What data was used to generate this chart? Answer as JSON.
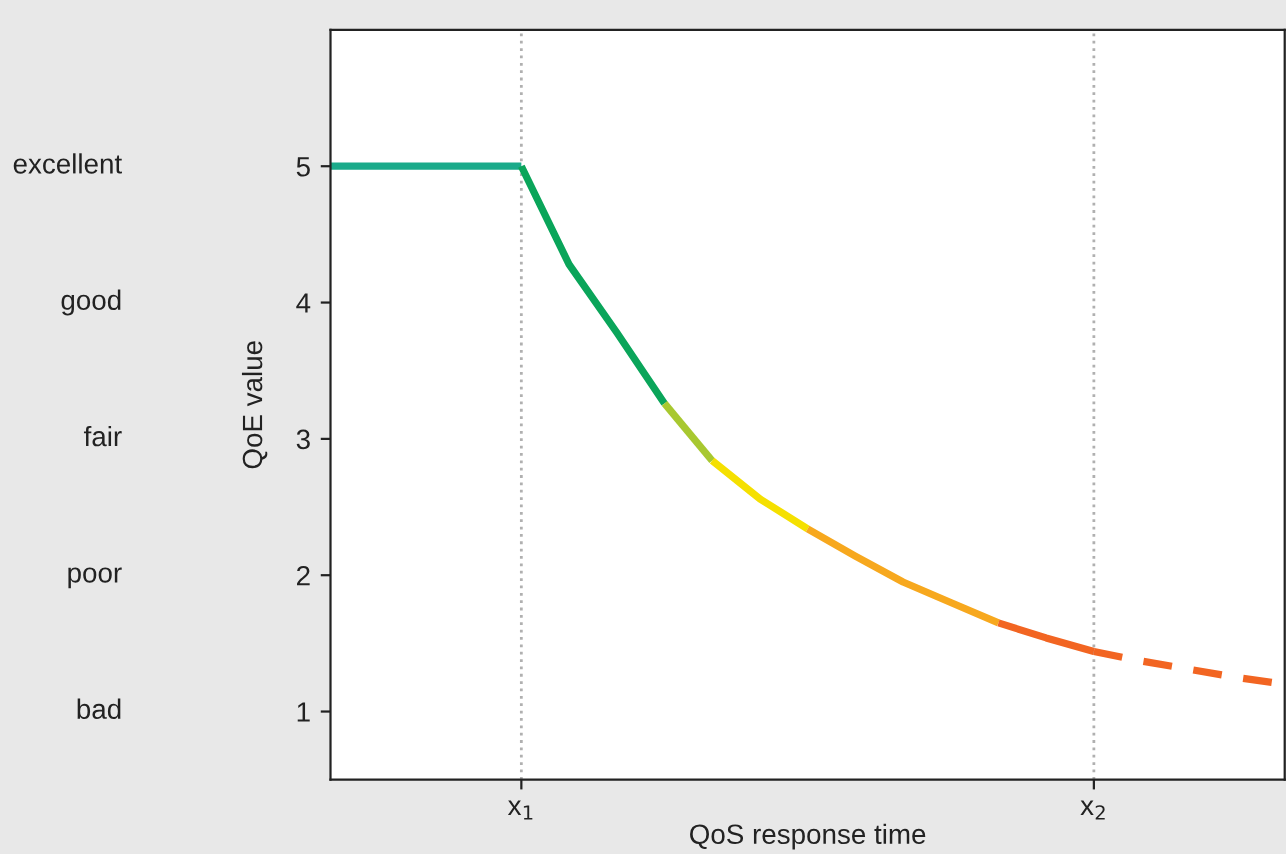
{
  "chart_data": {
    "type": "line",
    "xlabel": "QoS response time",
    "ylabel": "QoE value",
    "categories": [
      null,
      null,
      null,
      null,
      "x$_{1}$",
      null,
      null,
      null,
      null,
      null,
      null,
      null,
      null,
      null,
      null,
      null,
      "x$_{2}$",
      null,
      null,
      null,
      null
    ],
    "ylim": [
      0.5,
      6
    ],
    "yticks": [
      1,
      2,
      3,
      4,
      5
    ],
    "annotations": [
      "excellent",
      "good",
      "fair",
      "poor",
      "bad"
    ],
    "grid": "x",
    "legend": false,
    "marker": "none",
    "series": [
      {
        "color": "#1aaa8a",
        "line_style": "solid",
        "values": [
          5,
          5,
          5,
          5,
          5,
          null,
          null,
          null,
          null,
          null,
          null,
          null,
          null,
          null,
          null,
          null,
          null,
          null,
          null,
          null,
          null
        ]
      },
      {
        "color": "#0aa55a",
        "line_style": "solid",
        "values": [
          null,
          null,
          null,
          null,
          5,
          4.28,
          3.78,
          3.26,
          null,
          null,
          null,
          null,
          null,
          null,
          null,
          null,
          null,
          null,
          null,
          null,
          null
        ]
      },
      {
        "color": "#a8c830",
        "line_style": "solid",
        "values": [
          null,
          null,
          null,
          null,
          null,
          null,
          null,
          3.26,
          2.84,
          null,
          null,
          null,
          null,
          null,
          null,
          null,
          null,
          null,
          null,
          null,
          null
        ]
      },
      {
        "color": "#f5e000",
        "line_style": "solid",
        "values": [
          null,
          null,
          null,
          null,
          null,
          null,
          null,
          null,
          2.84,
          2.56,
          2.34,
          null,
          null,
          null,
          null,
          null,
          null,
          null,
          null,
          null,
          null
        ]
      },
      {
        "color": "#f7a81e",
        "line_style": "solid",
        "values": [
          null,
          null,
          null,
          null,
          null,
          null,
          null,
          null,
          null,
          null,
          2.34,
          2.14,
          1.95,
          1.8,
          1.65,
          null,
          null,
          null,
          null,
          null,
          null
        ]
      },
      {
        "color": "#f26522",
        "line_style": "solid",
        "values": [
          null,
          null,
          null,
          null,
          null,
          null,
          null,
          null,
          null,
          null,
          null,
          null,
          null,
          null,
          1.65,
          1.54,
          1.44,
          null,
          null,
          null,
          null
        ]
      },
      {
        "color": "#f26522",
        "line_style": "dashed",
        "values": [
          null,
          null,
          null,
          null,
          null,
          null,
          null,
          null,
          null,
          null,
          null,
          null,
          null,
          null,
          null,
          null,
          1.44,
          1.37,
          1.31,
          1.25,
          1.2
        ]
      }
    ]
  }
}
